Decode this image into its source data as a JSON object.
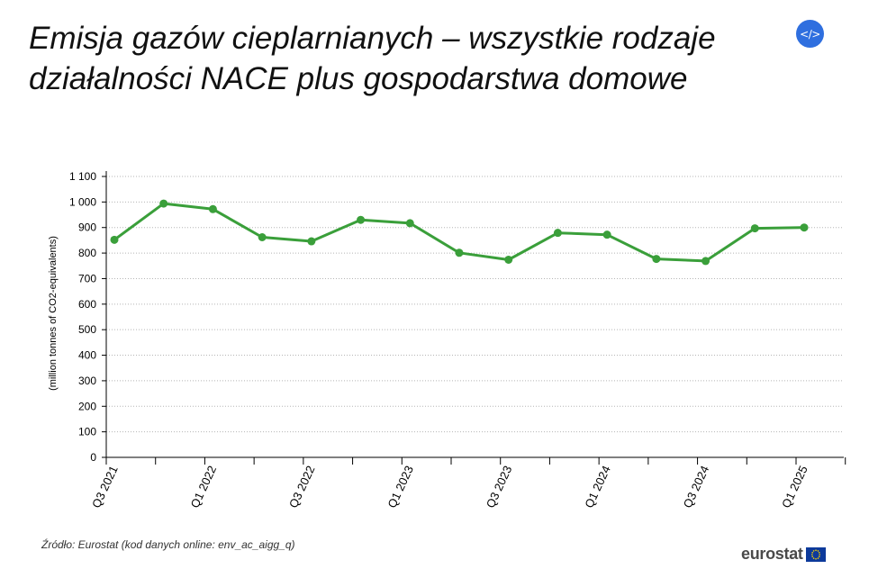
{
  "title": "Emisja gazów cieplarnianych – wszystkie rodzaje działalności NACE plus gospodarstwa domowe",
  "embed_button": {
    "label": "</>"
  },
  "source": "Źródło: Eurostat (kod danych online: env_ac_aigg_q)",
  "logo": {
    "text": "eurostat"
  },
  "colors": {
    "line": "#3a9f3a",
    "grid": "#b5b5b5",
    "axis": "#000000",
    "button": "#2f6fdf"
  },
  "chart_data": {
    "type": "line",
    "title": "Emisja gazów cieplarnianych – wszystkie rodzaje działalności NACE plus gospodarstwa domowe",
    "xlabel": "",
    "ylabel": "(million tonnes of CO2-equivalents)",
    "ylim": [
      0,
      1100
    ],
    "yticks": [
      0,
      100,
      200,
      300,
      400,
      500,
      600,
      700,
      800,
      900,
      1000,
      1100
    ],
    "ytick_labels": [
      "0",
      "100",
      "200",
      "300",
      "400",
      "500",
      "600",
      "700",
      "800",
      "900",
      "1 000",
      "1 100"
    ],
    "categories": [
      "Q3 2021",
      "Q4 2021",
      "Q1 2022",
      "Q2 2022",
      "Q3 2022",
      "Q4 2022",
      "Q1 2023",
      "Q2 2023",
      "Q3 2023",
      "Q4 2023",
      "Q1 2024",
      "Q2 2024",
      "Q3 2024",
      "Q4 2024",
      "Q1 2025"
    ],
    "xtick_labels_shown": [
      "Q3 2021",
      "Q1 2022",
      "Q3 2022",
      "Q1 2023",
      "Q3 2023",
      "Q1 2024",
      "Q3 2024",
      "Q1 2025"
    ],
    "series": [
      {
        "values": [
          852,
          994,
          972,
          862,
          846,
          930,
          917,
          801,
          774,
          879,
          872,
          777,
          769,
          897,
          900
        ]
      }
    ],
    "grid": true,
    "grid_style": "dotted",
    "legend": "none"
  }
}
